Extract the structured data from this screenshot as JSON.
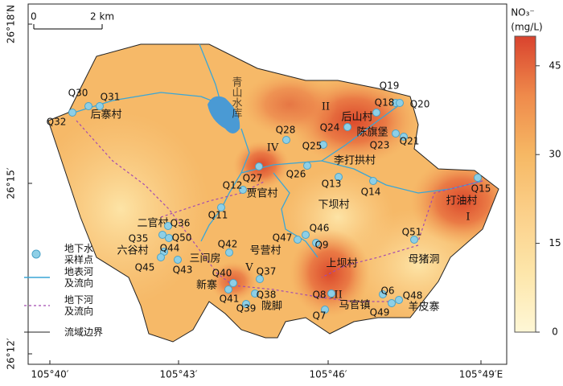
{
  "map": {
    "scale_bar": {
      "start": "0",
      "end": "2 km"
    },
    "lat_labels": [
      "26°18′N",
      "26°15′",
      "26°12′"
    ],
    "lon_labels": [
      "105°40′",
      "105°43′",
      "105°46′",
      "105°49′E"
    ],
    "colorbar": {
      "title": "NO₃⁻",
      "unit": "(mg/L)",
      "range": [
        0,
        50
      ],
      "ticks": [
        0,
        15,
        30,
        45
      ]
    },
    "legend": [
      "地下水\n采样点",
      "地表河\n及流向",
      "地下河\n及流向",
      "流域边界"
    ],
    "reservoir": "青山水库",
    "zones": [
      "I",
      "II",
      "III",
      "IV",
      "V"
    ],
    "places": [
      "后寨村",
      "后山村",
      "陈旗堡",
      "李打拱村",
      "打油村",
      "贾官村",
      "下坝村",
      "号营村",
      "上坝村",
      "母猪洞",
      "二官村",
      "六谷村",
      "三间房",
      "新寨",
      "陇脚",
      "马官镇",
      "羊皮寨"
    ],
    "samples": [
      "Q30",
      "Q31",
      "Q32",
      "Q19",
      "Q18",
      "Q20",
      "Q24",
      "Q23",
      "Q21",
      "Q28",
      "Q25",
      "Q27",
      "Q26",
      "Q13",
      "Q14",
      "Q15",
      "Q12",
      "Q11",
      "Q36",
      "Q35",
      "Q50",
      "Q44",
      "Q45",
      "Q43",
      "Q42",
      "Q47",
      "Q46",
      "Q9",
      "Q51",
      "Q37",
      "Q40",
      "Q41",
      "Q38",
      "Q39",
      "Q8",
      "Q7",
      "Q6",
      "Q48",
      "Q49"
    ]
  }
}
